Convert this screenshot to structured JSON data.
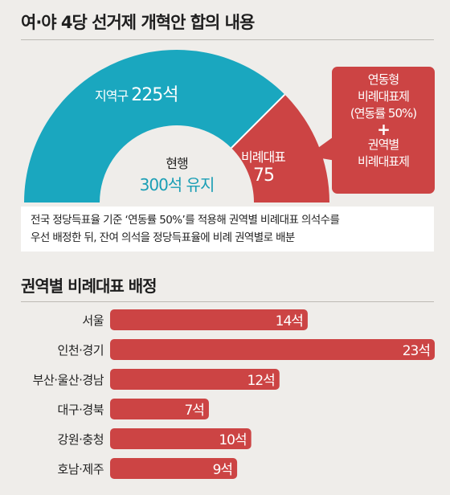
{
  "title": "여·야 4당 선거제 개혁안 합의 내용",
  "colors": {
    "district": "#1aa7bf",
    "proportional": "#cc4444",
    "background": "#efedea"
  },
  "seats": {
    "district_label": "지역구",
    "district_value": "225석",
    "prop_label": "비례대표",
    "prop_value": "75",
    "center_line1": "현행",
    "center_line2": "300석 유지"
  },
  "callout": {
    "line1": "연동형",
    "line2": "비례대표제",
    "line3": "(연동률 50%)",
    "plus": "+",
    "line4": "권역별",
    "line5": "비례대표제"
  },
  "note": {
    "line1": "전국 정당득표율 기준 ‘연동률 50%’를 적용해 권역별 비례대표 의석수를",
    "line2": "우선 배정한 뒤, 잔여 의석을 정당득표율에 비례 권역별로 배분"
  },
  "subtitle": "권역별 비례대표 배정",
  "chart_data": [
    {
      "type": "pie",
      "title": "여·야 4당 선거제 개혁안 합의 내용",
      "categories": [
        "지역구",
        "비례대표"
      ],
      "values": [
        225,
        75
      ],
      "total": 300
    },
    {
      "type": "bar",
      "title": "권역별 비례대표 배정",
      "orientation": "horizontal",
      "categories": [
        "서울",
        "인천·경기",
        "부산·울산·경남",
        "대구·경북",
        "강원·충청",
        "호남·제주"
      ],
      "values": [
        14,
        23,
        12,
        7,
        10,
        9
      ],
      "value_labels": [
        "14석",
        "23석",
        "12석",
        "7석",
        "10석",
        "9석"
      ],
      "unit": "석",
      "color": "#cc4444"
    }
  ]
}
